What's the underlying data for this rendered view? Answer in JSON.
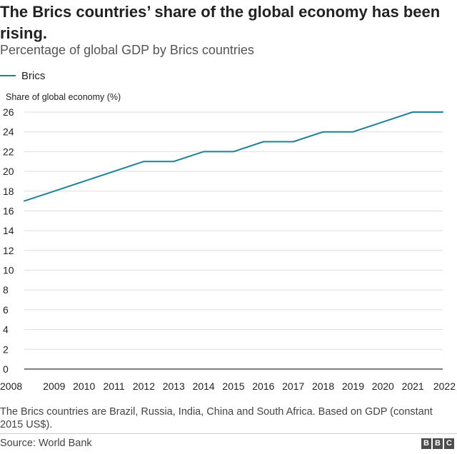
{
  "header": {
    "title": "The Brics countries’ share of the global economy has been rising.",
    "subtitle": "Percentage of global GDP by Brics countries"
  },
  "legend": {
    "label": "Brics"
  },
  "colors": {
    "series": "#1d8199",
    "grid": "#dddddd",
    "axis": "#333333"
  },
  "chart_data": {
    "type": "line",
    "title": "The Brics countries’ share of the global economy has been rising.",
    "subtitle": "Percentage of global GDP by Brics countries",
    "ylabel": "Share of global economy (%)",
    "xlabel": "",
    "x": [
      "2008",
      "2009",
      "2010",
      "2011",
      "2012",
      "2013",
      "2014",
      "2015",
      "2016",
      "2017",
      "2018",
      "2019",
      "2020",
      "2021",
      "2022"
    ],
    "series": [
      {
        "name": "Brics",
        "values": [
          17,
          18,
          19,
          20,
          21,
          21,
          22,
          22,
          23,
          23,
          24,
          24,
          25,
          26,
          26
        ]
      }
    ],
    "yticks": [
      "0",
      "2",
      "4",
      "6",
      "8",
      "10",
      "12",
      "14",
      "16",
      "18",
      "20",
      "22",
      "24",
      "26"
    ],
    "ylim": [
      0,
      26
    ],
    "grid": true,
    "legend_position": "top-left"
  },
  "footer": {
    "note": "The Brics countries are Brazil, Russia, India, China and South Africa. Based on GDP (constant 2015 US$).",
    "source": "Source: World Bank",
    "logo": [
      "B",
      "B",
      "C"
    ]
  }
}
